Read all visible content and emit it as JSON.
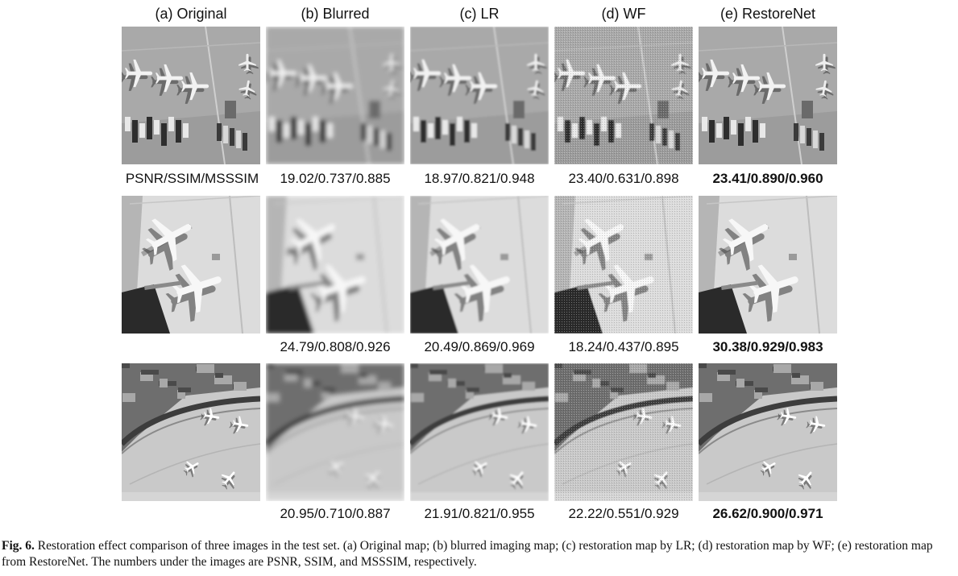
{
  "columns": [
    "(a) Original",
    "(b) Blurred",
    "(c) LR",
    "(d) WF",
    "(e) RestoreNet"
  ],
  "metric_label": "PSNR/SSIM/MSSSIM",
  "rows": [
    {
      "scene": "parked-aircraft",
      "metrics": [
        "",
        "19.02/0.737/0.885",
        "18.97/0.821/0.948",
        "23.40/0.631/0.898",
        "23.41/0.890/0.960"
      ]
    },
    {
      "scene": "airliners-at-gate",
      "metrics": [
        "",
        "24.79/0.808/0.926",
        "20.49/0.869/0.969",
        "18.24/0.437/0.895",
        "30.38/0.929/0.983"
      ]
    },
    {
      "scene": "airport-apron",
      "metrics": [
        "",
        "20.95/0.710/0.887",
        "21.91/0.821/0.955",
        "22.22/0.551/0.929",
        "26.62/0.900/0.971"
      ]
    }
  ],
  "best_column": 4,
  "caption": {
    "label": "Fig. 6.",
    "text": "Restoration effect comparison of three images in the test set. (a) Original map; (b) blurred imaging map; (c) restoration map by LR; (d) restoration map by WF; (e) restoration map from RestoreNet. The numbers under the images are PSNR, SSIM, and MSSSIM, respectively."
  }
}
